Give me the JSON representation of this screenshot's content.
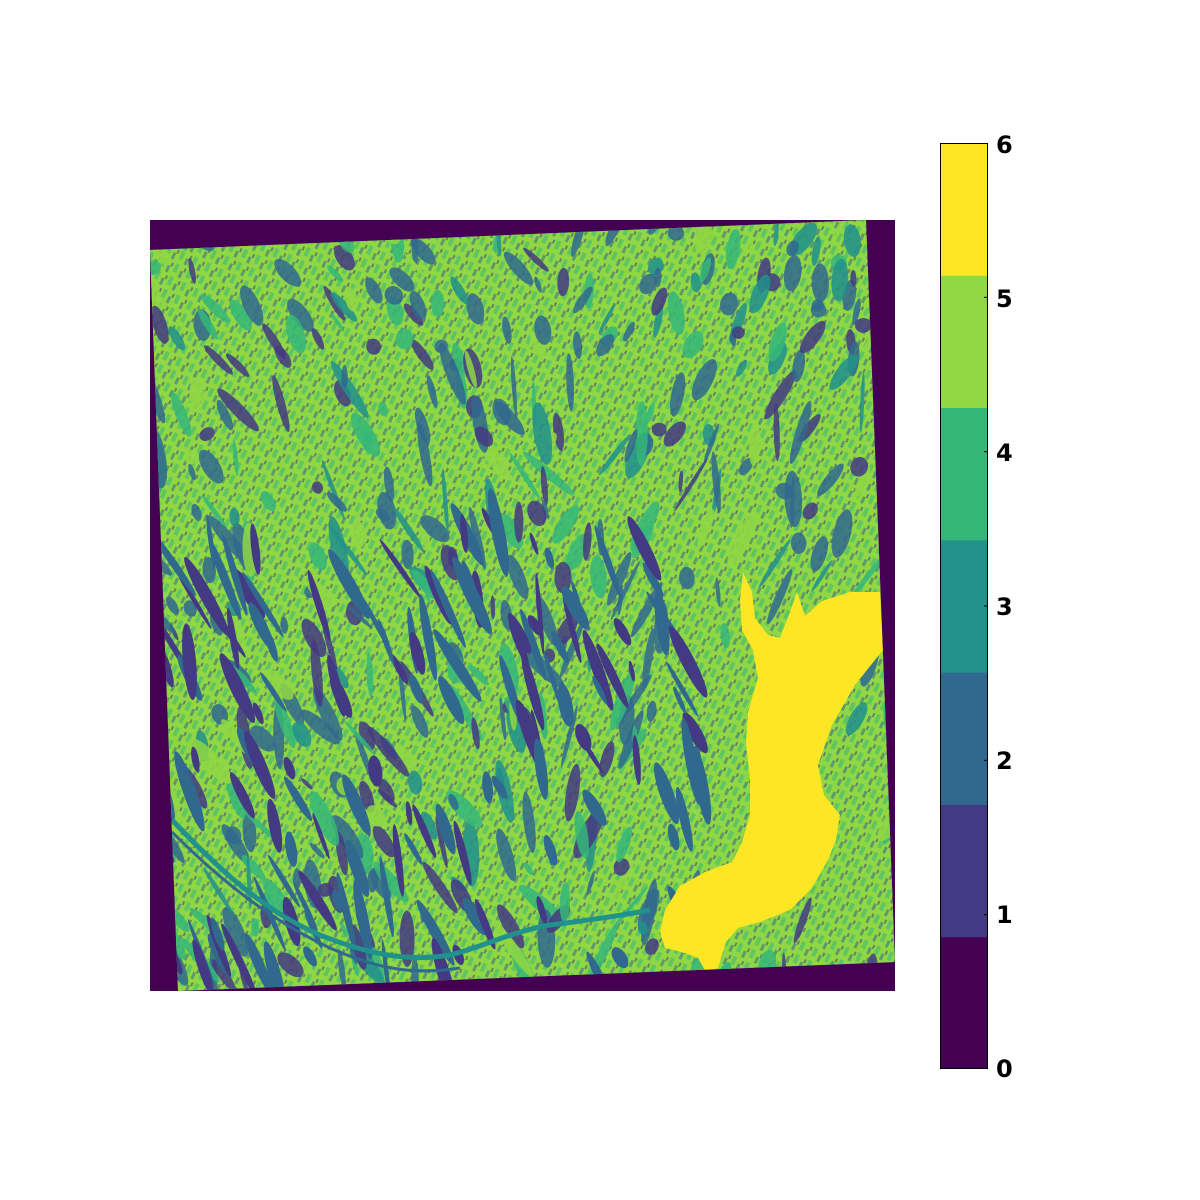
{
  "map": {
    "type": "classified-raster",
    "classes": [
      0,
      1,
      2,
      3,
      4,
      5,
      6
    ],
    "class_colors": [
      "#440154",
      "#443983",
      "#31688e",
      "#21918c",
      "#35b779",
      "#90d743",
      "#fde725"
    ],
    "nodata_class": 0,
    "dominant_class": 5,
    "water_class": 6
  },
  "colorbar": {
    "orientation": "vertical",
    "range": [
      0,
      6
    ],
    "ticks": [
      "0",
      "1",
      "2",
      "3",
      "4",
      "5",
      "6"
    ],
    "bands": [
      {
        "class": 0,
        "color": "#440154"
      },
      {
        "class": 1,
        "color": "#443983"
      },
      {
        "class": 2,
        "color": "#31688e"
      },
      {
        "class": 3,
        "color": "#21918c"
      },
      {
        "class": 4,
        "color": "#35b779"
      },
      {
        "class": 5,
        "color": "#90d743"
      },
      {
        "class": 6,
        "color": "#fde725"
      }
    ]
  }
}
